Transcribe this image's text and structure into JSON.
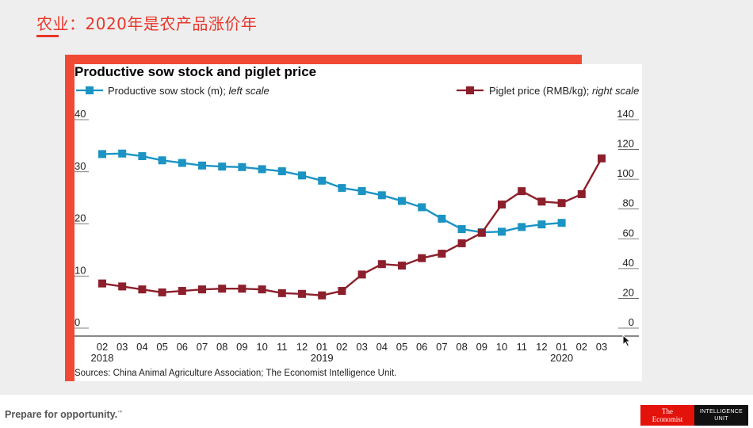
{
  "slide": {
    "title": "农业：2020年是农产品涨价年",
    "tagline": "Prepare for opportunity.",
    "tagline_mark": "™",
    "logo_economist": [
      "The",
      "Economist"
    ],
    "logo_eiu": [
      "INTELLIGENCE",
      "UNIT"
    ]
  },
  "colors": {
    "accent": "#f04a35",
    "sow": "#1b94c4",
    "piglet": "#8c1f2b"
  },
  "chart_data": {
    "type": "line",
    "title": "Productive sow stock and piglet price",
    "sources": "Sources: China Animal Agriculture Association; The Economist Intelligence Unit.",
    "categories": [
      "02",
      "03",
      "04",
      "05",
      "06",
      "07",
      "08",
      "09",
      "10",
      "11",
      "12",
      "01",
      "02",
      "03",
      "04",
      "05",
      "06",
      "07",
      "08",
      "09",
      "10",
      "11",
      "12",
      "01",
      "02",
      "03"
    ],
    "year_labels": [
      {
        "index": 0,
        "label": "2018"
      },
      {
        "index": 11,
        "label": "2019"
      },
      {
        "index": 23,
        "label": "2020"
      }
    ],
    "left_axis": {
      "ylim": [
        0,
        40
      ],
      "ticks": [
        "0",
        "10",
        "20",
        "30",
        "40"
      ]
    },
    "right_axis": {
      "ylim": [
        0,
        140
      ],
      "ticks": [
        "0",
        "20",
        "40",
        "60",
        "80",
        "100",
        "120",
        "140"
      ]
    },
    "series": [
      {
        "name": "Productive sow stock (m);",
        "note": "left scale",
        "axis": "left",
        "values": [
          33.4,
          33.5,
          33.0,
          32.2,
          31.7,
          31.2,
          31.0,
          30.9,
          30.5,
          30.1,
          29.3,
          28.3,
          26.9,
          26.3,
          25.5,
          24.4,
          23.2,
          21.0,
          19.0,
          18.4,
          18.5,
          19.4,
          19.9,
          20.2,
          null,
          null
        ]
      },
      {
        "name": "Piglet price (RMB/kg);",
        "note": "right scale",
        "axis": "right",
        "values": [
          30,
          28,
          26,
          24,
          25,
          26,
          26.5,
          26.5,
          26,
          23.5,
          23,
          22,
          25,
          36,
          43,
          42,
          47,
          50,
          57,
          64,
          83,
          92,
          85,
          84,
          90,
          114
        ]
      }
    ]
  }
}
